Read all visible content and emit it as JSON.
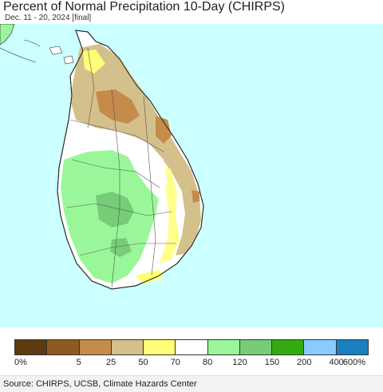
{
  "header": {
    "title": "Percent of Normal Precipitation 10-Day (CHIRPS)",
    "subtitle": "Dec. 11 - 20, 2024 [final]"
  },
  "map": {
    "ocean_color": "#ccffff",
    "border_color": "#333333",
    "regions": [
      {
        "name": "north-peninsula",
        "category": "50-70",
        "color": "#d4c08a"
      },
      {
        "name": "north-central",
        "category": "25-50",
        "color": "#c48b4a"
      },
      {
        "name": "east-coast",
        "category": "50-70",
        "color": "#d4c08a"
      },
      {
        "name": "coastal-fringe",
        "category": "70-80",
        "color": "#ffff77"
      },
      {
        "name": "central",
        "category": "80-120",
        "color": "#ffffff"
      },
      {
        "name": "south-west",
        "category": "120-150",
        "color": "#99f799"
      },
      {
        "name": "highlands",
        "category": "150-200",
        "color": "#77cc77"
      }
    ]
  },
  "legend": {
    "colors": [
      "#5c3a12",
      "#8f5a22",
      "#c48b4a",
      "#d4c08a",
      "#ffff77",
      "#ffffff",
      "#99f799",
      "#77cc77",
      "#33aa11",
      "#88ccff",
      "#1a7fc0"
    ],
    "labels": [
      "0%",
      "5",
      "25",
      "50",
      "70",
      "80",
      "120",
      "150",
      "200",
      "400",
      "600%"
    ]
  },
  "footer": {
    "source": "Source: CHIRPS, UCSB, Climate Hazards Center"
  }
}
